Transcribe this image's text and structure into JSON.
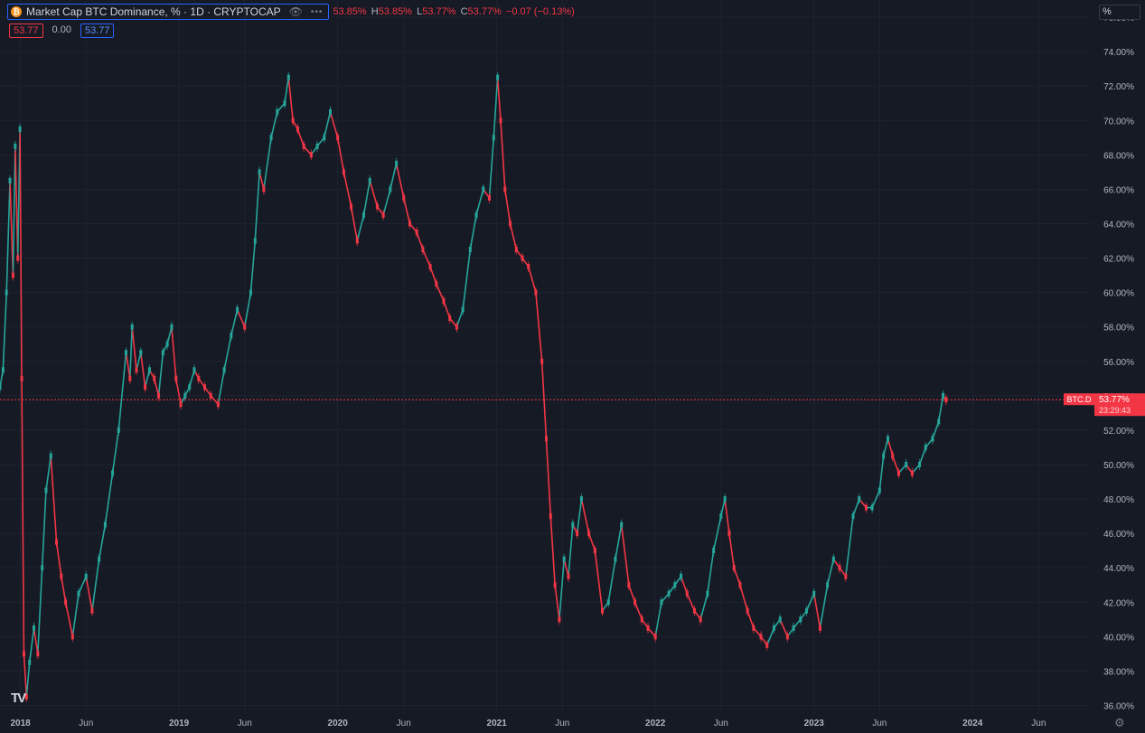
{
  "header": {
    "title": "Market Cap BTC Dominance, % · 1D · CRYPTOCAP",
    "logo_letter": "₿",
    "open": "53.85%",
    "high_label": "H",
    "high": "53.85%",
    "low_label": "L",
    "low": "53.77%",
    "close_label": "C",
    "close": "53.77%",
    "change": "−0.07 (−0.13%)"
  },
  "indicator_row": {
    "value1": "53.77",
    "value2": "0.00",
    "value3": "53.77"
  },
  "scale_button": "%",
  "price_tag": {
    "symbol": "BTC.D",
    "value": "53.77%",
    "countdown": "23:29:43"
  },
  "colors": {
    "up": "#26a69a",
    "down": "#f23645",
    "background": "#161a25",
    "grid": "#1f2330",
    "label": "#b2b5be"
  },
  "chart_data": {
    "type": "line",
    "yscale": "percent",
    "ylim": [
      35.5,
      77.0
    ],
    "xlim": [
      "2017-11-15",
      "2024-10-01"
    ],
    "y_ticks": [
      "36.00%",
      "38.00%",
      "40.00%",
      "42.00%",
      "44.00%",
      "46.00%",
      "48.00%",
      "50.00%",
      "52.00%",
      "54.00%",
      "56.00%",
      "58.00%",
      "60.00%",
      "62.00%",
      "64.00%",
      "66.00%",
      "68.00%",
      "70.00%",
      "72.00%",
      "74.00%",
      "76.00%"
    ],
    "x_ticks": [
      {
        "date": "2018-01-01",
        "label": "2018",
        "bold": true
      },
      {
        "date": "2018-06-01",
        "label": "Jun",
        "bold": false
      },
      {
        "date": "2019-01-01",
        "label": "2019",
        "bold": true
      },
      {
        "date": "2019-06-01",
        "label": "Jun",
        "bold": false
      },
      {
        "date": "2020-01-01",
        "label": "2020",
        "bold": true
      },
      {
        "date": "2020-06-01",
        "label": "Jun",
        "bold": false
      },
      {
        "date": "2021-01-01",
        "label": "2021",
        "bold": true
      },
      {
        "date": "2021-06-01",
        "label": "Jun",
        "bold": false
      },
      {
        "date": "2022-01-01",
        "label": "2022",
        "bold": true
      },
      {
        "date": "2022-06-01",
        "label": "Jun",
        "bold": false
      },
      {
        "date": "2023-01-01",
        "label": "2023",
        "bold": true
      },
      {
        "date": "2023-06-01",
        "label": "Jun",
        "bold": false
      },
      {
        "date": "2024-01-01",
        "label": "2024",
        "bold": true
      },
      {
        "date": "2024-06-01",
        "label": "Jun",
        "bold": false
      }
    ],
    "last_value": 53.77,
    "series": [
      {
        "points": [
          [
            "2017-11-15",
            54.5
          ],
          [
            "2017-11-22",
            55.5
          ],
          [
            "2017-11-30",
            60.0
          ],
          [
            "2017-12-08",
            66.5
          ],
          [
            "2017-12-15",
            61.0
          ],
          [
            "2017-12-20",
            68.5
          ],
          [
            "2017-12-26",
            62.0
          ],
          [
            "2017-12-31",
            69.5
          ],
          [
            "2018-01-04",
            55.0
          ],
          [
            "2018-01-09",
            39.0
          ],
          [
            "2018-01-15",
            36.5
          ],
          [
            "2018-01-22",
            38.5
          ],
          [
            "2018-02-01",
            40.5
          ],
          [
            "2018-02-10",
            39.0
          ],
          [
            "2018-02-20",
            44.0
          ],
          [
            "2018-03-01",
            48.5
          ],
          [
            "2018-03-12",
            50.5
          ],
          [
            "2018-03-25",
            45.5
          ],
          [
            "2018-04-05",
            43.5
          ],
          [
            "2018-04-15",
            42.0
          ],
          [
            "2018-05-01",
            40.0
          ],
          [
            "2018-05-15",
            42.5
          ],
          [
            "2018-06-01",
            43.5
          ],
          [
            "2018-06-15",
            41.5
          ],
          [
            "2018-07-01",
            44.5
          ],
          [
            "2018-07-15",
            46.5
          ],
          [
            "2018-08-01",
            49.5
          ],
          [
            "2018-08-15",
            52.0
          ],
          [
            "2018-09-01",
            56.5
          ],
          [
            "2018-09-10",
            55.0
          ],
          [
            "2018-09-15",
            58.0
          ],
          [
            "2018-09-25",
            55.5
          ],
          [
            "2018-10-05",
            56.5
          ],
          [
            "2018-10-15",
            54.5
          ],
          [
            "2018-10-25",
            55.5
          ],
          [
            "2018-11-05",
            55.0
          ],
          [
            "2018-11-15",
            54.0
          ],
          [
            "2018-11-25",
            56.5
          ],
          [
            "2018-12-05",
            57.0
          ],
          [
            "2018-12-15",
            58.0
          ],
          [
            "2018-12-25",
            55.0
          ],
          [
            "2019-01-05",
            53.5
          ],
          [
            "2019-01-15",
            54.0
          ],
          [
            "2019-01-25",
            54.5
          ],
          [
            "2019-02-05",
            55.5
          ],
          [
            "2019-02-15",
            55.0
          ],
          [
            "2019-03-01",
            54.5
          ],
          [
            "2019-03-15",
            54.0
          ],
          [
            "2019-04-01",
            53.5
          ],
          [
            "2019-04-15",
            55.5
          ],
          [
            "2019-05-01",
            57.5
          ],
          [
            "2019-05-15",
            59.0
          ],
          [
            "2019-06-01",
            58.0
          ],
          [
            "2019-06-15",
            60.0
          ],
          [
            "2019-06-25",
            63.0
          ],
          [
            "2019-07-05",
            67.0
          ],
          [
            "2019-07-15",
            66.0
          ],
          [
            "2019-08-01",
            69.0
          ],
          [
            "2019-08-15",
            70.5
          ],
          [
            "2019-09-01",
            71.0
          ],
          [
            "2019-09-10",
            72.5
          ],
          [
            "2019-09-20",
            70.0
          ],
          [
            "2019-10-01",
            69.5
          ],
          [
            "2019-10-15",
            68.5
          ],
          [
            "2019-11-01",
            68.0
          ],
          [
            "2019-11-15",
            68.5
          ],
          [
            "2019-12-01",
            69.0
          ],
          [
            "2019-12-15",
            70.5
          ],
          [
            "2020-01-01",
            69.0
          ],
          [
            "2020-01-15",
            67.0
          ],
          [
            "2020-02-01",
            65.0
          ],
          [
            "2020-02-15",
            63.0
          ],
          [
            "2020-03-01",
            64.5
          ],
          [
            "2020-03-15",
            66.5
          ],
          [
            "2020-04-01",
            65.0
          ],
          [
            "2020-04-15",
            64.5
          ],
          [
            "2020-05-01",
            66.0
          ],
          [
            "2020-05-15",
            67.5
          ],
          [
            "2020-06-01",
            65.5
          ],
          [
            "2020-06-15",
            64.0
          ],
          [
            "2020-07-01",
            63.5
          ],
          [
            "2020-07-15",
            62.5
          ],
          [
            "2020-08-01",
            61.5
          ],
          [
            "2020-08-15",
            60.5
          ],
          [
            "2020-09-01",
            59.5
          ],
          [
            "2020-09-15",
            58.5
          ],
          [
            "2020-10-01",
            58.0
          ],
          [
            "2020-10-15",
            59.0
          ],
          [
            "2020-11-01",
            62.5
          ],
          [
            "2020-11-15",
            64.5
          ],
          [
            "2020-12-01",
            66.0
          ],
          [
            "2020-12-15",
            65.5
          ],
          [
            "2020-12-25",
            69.0
          ],
          [
            "2021-01-03",
            72.5
          ],
          [
            "2021-01-10",
            70.0
          ],
          [
            "2021-01-20",
            66.0
          ],
          [
            "2021-02-01",
            64.0
          ],
          [
            "2021-02-15",
            62.5
          ],
          [
            "2021-03-01",
            62.0
          ],
          [
            "2021-03-15",
            61.5
          ],
          [
            "2021-04-01",
            60.0
          ],
          [
            "2021-04-15",
            56.0
          ],
          [
            "2021-04-25",
            51.5
          ],
          [
            "2021-05-05",
            47.0
          ],
          [
            "2021-05-15",
            43.0
          ],
          [
            "2021-05-25",
            41.0
          ],
          [
            "2021-06-05",
            44.5
          ],
          [
            "2021-06-15",
            43.5
          ],
          [
            "2021-06-25",
            46.5
          ],
          [
            "2021-07-05",
            46.0
          ],
          [
            "2021-07-15",
            48.0
          ],
          [
            "2021-08-01",
            46.0
          ],
          [
            "2021-08-15",
            45.0
          ],
          [
            "2021-09-01",
            41.5
          ],
          [
            "2021-09-15",
            42.0
          ],
          [
            "2021-10-01",
            44.5
          ],
          [
            "2021-10-15",
            46.5
          ],
          [
            "2021-11-01",
            43.0
          ],
          [
            "2021-11-15",
            42.0
          ],
          [
            "2021-12-01",
            41.0
          ],
          [
            "2021-12-15",
            40.5
          ],
          [
            "2022-01-01",
            40.0
          ],
          [
            "2022-01-15",
            42.0
          ],
          [
            "2022-02-01",
            42.5
          ],
          [
            "2022-02-15",
            43.0
          ],
          [
            "2022-03-01",
            43.5
          ],
          [
            "2022-03-15",
            42.5
          ],
          [
            "2022-04-01",
            41.5
          ],
          [
            "2022-04-15",
            41.0
          ],
          [
            "2022-05-01",
            42.5
          ],
          [
            "2022-05-15",
            45.0
          ],
          [
            "2022-06-01",
            47.0
          ],
          [
            "2022-06-10",
            48.0
          ],
          [
            "2022-06-20",
            46.0
          ],
          [
            "2022-07-01",
            44.0
          ],
          [
            "2022-07-15",
            43.0
          ],
          [
            "2022-08-01",
            41.5
          ],
          [
            "2022-08-15",
            40.5
          ],
          [
            "2022-09-01",
            40.0
          ],
          [
            "2022-09-15",
            39.5
          ],
          [
            "2022-10-01",
            40.5
          ],
          [
            "2022-10-15",
            41.0
          ],
          [
            "2022-11-01",
            40.0
          ],
          [
            "2022-11-15",
            40.5
          ],
          [
            "2022-12-01",
            41.0
          ],
          [
            "2022-12-15",
            41.5
          ],
          [
            "2023-01-01",
            42.5
          ],
          [
            "2023-01-15",
            40.5
          ],
          [
            "2023-02-01",
            43.0
          ],
          [
            "2023-02-15",
            44.5
          ],
          [
            "2023-03-01",
            44.0
          ],
          [
            "2023-03-15",
            43.5
          ],
          [
            "2023-04-01",
            47.0
          ],
          [
            "2023-04-15",
            48.0
          ],
          [
            "2023-05-01",
            47.5
          ],
          [
            "2023-05-15",
            47.5
          ],
          [
            "2023-06-01",
            48.5
          ],
          [
            "2023-06-10",
            50.5
          ],
          [
            "2023-06-20",
            51.5
          ],
          [
            "2023-07-01",
            50.5
          ],
          [
            "2023-07-15",
            49.5
          ],
          [
            "2023-08-01",
            50.0
          ],
          [
            "2023-08-15",
            49.5
          ],
          [
            "2023-09-01",
            50.0
          ],
          [
            "2023-09-15",
            51.0
          ],
          [
            "2023-10-01",
            51.5
          ],
          [
            "2023-10-15",
            52.5
          ],
          [
            "2023-10-25",
            54.0
          ],
          [
            "2023-11-01",
            53.77
          ]
        ]
      }
    ]
  }
}
